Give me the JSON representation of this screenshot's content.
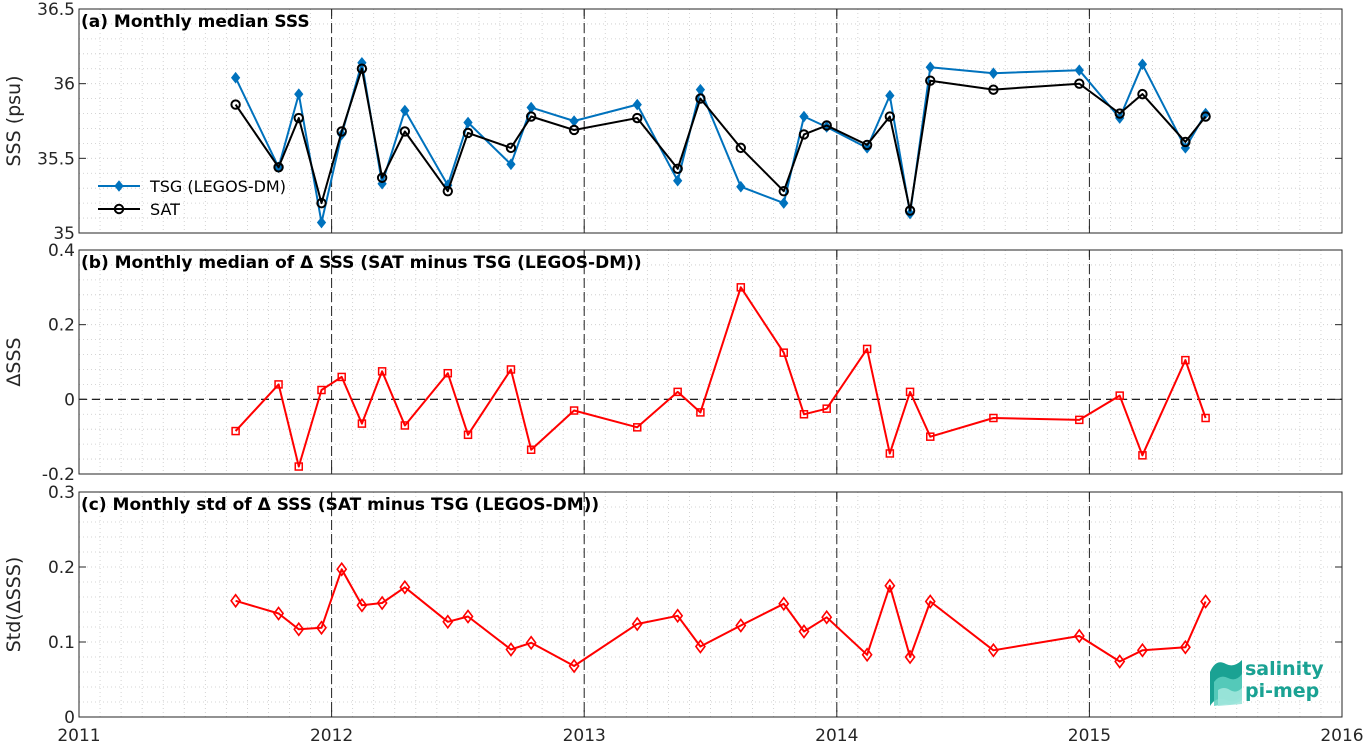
{
  "colors": {
    "tsg": "#0072bd",
    "sat": "#000000",
    "delta": "#ff0000",
    "logo": "#1aa293"
  },
  "logo": {
    "line1": "salinity",
    "line2": "pi-mep"
  },
  "chart_data": [
    {
      "type": "line",
      "panel": "a",
      "title": "(a) Monthly median SSS",
      "xlabel": "",
      "ylabel": "SSS (psu)",
      "xlim": [
        2011,
        2016
      ],
      "ylim": [
        35,
        36.5
      ],
      "xticks": [
        "2011",
        "2012",
        "2013",
        "2014",
        "2015",
        "2016"
      ],
      "yticks": [
        "35",
        "35.5",
        "36",
        "36.5"
      ],
      "grid": true,
      "legend_position": "left-middle",
      "series": [
        {
          "name": "TSG (LEGOS-DM)",
          "marker": "diamond-filled",
          "x": [
            2011.62,
            2011.79,
            2011.87,
            2011.96,
            2012.04,
            2012.12,
            2012.2,
            2012.29,
            2012.46,
            2012.54,
            2012.71,
            2012.79,
            2012.96,
            2013.21,
            2013.37,
            2013.46,
            2013.62,
            2013.79,
            2013.87,
            2013.96,
            2014.12,
            2014.21,
            2014.29,
            2014.37,
            2014.62,
            2014.96,
            2015.12,
            2015.21,
            2015.38,
            2015.46
          ],
          "y": [
            36.04,
            35.44,
            35.93,
            35.07,
            35.66,
            36.14,
            35.33,
            35.82,
            35.32,
            35.74,
            35.46,
            35.84,
            35.75,
            35.86,
            35.35,
            35.96,
            35.31,
            35.2,
            35.78,
            35.71,
            35.57,
            35.92,
            35.13,
            36.11,
            36.07,
            36.09,
            35.77,
            36.13,
            35.57,
            35.8
          ]
        },
        {
          "name": "SAT",
          "marker": "circle-open",
          "x": [
            2011.62,
            2011.79,
            2011.87,
            2011.96,
            2012.04,
            2012.12,
            2012.2,
            2012.29,
            2012.46,
            2012.54,
            2012.71,
            2012.79,
            2012.96,
            2013.21,
            2013.37,
            2013.46,
            2013.62,
            2013.79,
            2013.87,
            2013.96,
            2014.12,
            2014.21,
            2014.29,
            2014.37,
            2014.62,
            2014.96,
            2015.12,
            2015.21,
            2015.38,
            2015.46
          ],
          "y": [
            35.86,
            35.44,
            35.77,
            35.2,
            35.68,
            36.1,
            35.37,
            35.68,
            35.28,
            35.67,
            35.57,
            35.78,
            35.69,
            35.77,
            35.43,
            35.9,
            35.57,
            35.28,
            35.66,
            35.72,
            35.59,
            35.78,
            35.15,
            36.02,
            35.96,
            36.0,
            35.8,
            35.93,
            35.61,
            35.78
          ]
        }
      ]
    },
    {
      "type": "line",
      "panel": "b",
      "title": "(b) Monthly median of Δ SSS (SAT minus TSG (LEGOS-DM))",
      "xlabel": "",
      "ylabel": "ΔSSS",
      "xlim": [
        2011,
        2016
      ],
      "ylim": [
        -0.2,
        0.4
      ],
      "xticks": [
        "2011",
        "2012",
        "2013",
        "2014",
        "2015",
        "2016"
      ],
      "yticks": [
        "-0.2",
        "0",
        "0.2",
        "0.4"
      ],
      "grid": true,
      "reference_line_y": 0,
      "series": [
        {
          "name": "",
          "marker": "square-open",
          "x": [
            2011.62,
            2011.79,
            2011.87,
            2011.96,
            2012.04,
            2012.12,
            2012.2,
            2012.29,
            2012.46,
            2012.54,
            2012.71,
            2012.79,
            2012.96,
            2013.21,
            2013.37,
            2013.46,
            2013.62,
            2013.79,
            2013.87,
            2013.96,
            2014.12,
            2014.21,
            2014.29,
            2014.37,
            2014.62,
            2014.96,
            2015.12,
            2015.21,
            2015.38,
            2015.46
          ],
          "y": [
            -0.085,
            0.04,
            -0.18,
            0.025,
            0.06,
            -0.065,
            0.075,
            -0.07,
            0.07,
            -0.095,
            0.08,
            -0.135,
            -0.03,
            -0.075,
            0.02,
            -0.035,
            0.3,
            0.125,
            -0.04,
            -0.025,
            0.135,
            -0.145,
            0.02,
            -0.1,
            -0.05,
            -0.055,
            0.01,
            -0.15,
            0.105,
            -0.05
          ]
        }
      ]
    },
    {
      "type": "line",
      "panel": "c",
      "title": "(c) Monthly std of Δ SSS (SAT minus TSG (LEGOS-DM))",
      "xlabel": "",
      "ylabel": "Std(ΔSSS)",
      "xlim": [
        2011,
        2016
      ],
      "ylim": [
        0,
        0.3
      ],
      "xticks": [
        "2011",
        "2012",
        "2013",
        "2014",
        "2015",
        "2016"
      ],
      "yticks": [
        "0",
        "0.1",
        "0.2",
        "0.3"
      ],
      "grid": true,
      "series": [
        {
          "name": "",
          "marker": "diamond-open",
          "x": [
            2011.62,
            2011.79,
            2011.87,
            2011.96,
            2012.04,
            2012.12,
            2012.2,
            2012.29,
            2012.46,
            2012.54,
            2012.71,
            2012.79,
            2012.96,
            2013.21,
            2013.37,
            2013.46,
            2013.62,
            2013.79,
            2013.87,
            2013.96,
            2014.12,
            2014.21,
            2014.29,
            2014.37,
            2014.62,
            2014.96,
            2015.12,
            2015.21,
            2015.38,
            2015.46
          ],
          "y": [
            0.155,
            0.138,
            0.117,
            0.119,
            0.197,
            0.149,
            0.152,
            0.173,
            0.127,
            0.134,
            0.09,
            0.099,
            0.068,
            0.124,
            0.135,
            0.094,
            0.122,
            0.151,
            0.114,
            0.133,
            0.083,
            0.175,
            0.08,
            0.154,
            0.089,
            0.108,
            0.074,
            0.089,
            0.093,
            0.154
          ]
        }
      ]
    }
  ]
}
